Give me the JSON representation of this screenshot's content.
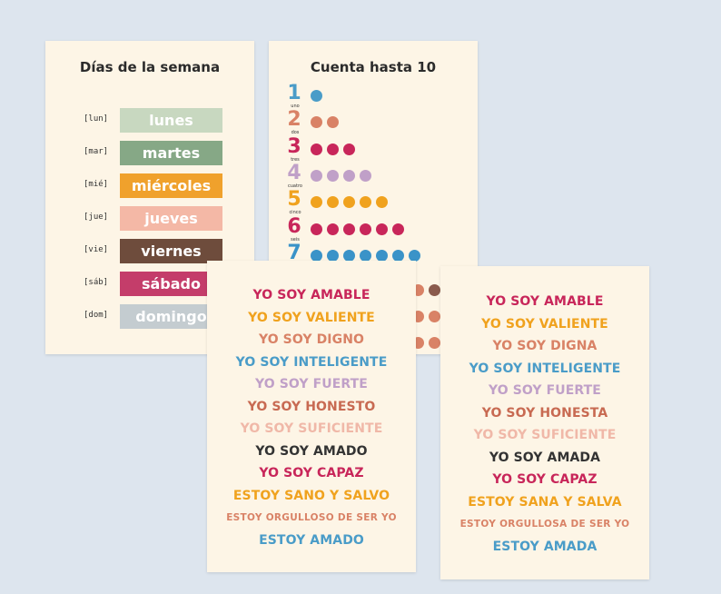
{
  "days_card": {
    "title": "Días de la semana",
    "days": [
      {
        "abbr": "[lun]",
        "name": "lunes",
        "color": "#c8d8c0"
      },
      {
        "abbr": "[mar]",
        "name": "martes",
        "color": "#86a886"
      },
      {
        "abbr": "[mié]",
        "name": "miércoles",
        "color": "#f0a12c"
      },
      {
        "abbr": "[jue]",
        "name": "jueves",
        "color": "#f4b8a6"
      },
      {
        "abbr": "[vie]",
        "name": "viernes",
        "color": "#6e4c3c"
      },
      {
        "abbr": "[sáb]",
        "name": "sábado",
        "color": "#c43d6a"
      },
      {
        "abbr": "[dom]",
        "name": "domingo",
        "color": "#c4ccd0"
      }
    ]
  },
  "count_card": {
    "title": "Cuenta hasta 10",
    "numbers": [
      {
        "digit": "1",
        "word": "uno",
        "count": 1,
        "color": "#4a9cc8"
      },
      {
        "digit": "2",
        "word": "dos",
        "count": 2,
        "color": "#d98266"
      },
      {
        "digit": "3",
        "word": "tres",
        "count": 3,
        "color": "#c8265a"
      },
      {
        "digit": "4",
        "word": "cuatro",
        "count": 4,
        "color": "#c0a0c8"
      },
      {
        "digit": "5",
        "word": "cinco",
        "count": 5,
        "color": "#f0a21e"
      },
      {
        "digit": "6",
        "word": "seis",
        "count": 6,
        "color": "#c8265a"
      },
      {
        "digit": "7",
        "word": "",
        "count": 7,
        "color": "#3a93c8"
      }
    ],
    "hidden_rows_visible_dots": [
      {
        "count": 2,
        "colors": [
          "#d98266",
          "#8a5a4c"
        ]
      },
      {
        "count": 2,
        "colors": [
          "#d98266",
          "#d98266"
        ]
      },
      {
        "count": 2,
        "colors": [
          "#d98266",
          "#d98266"
        ]
      }
    ]
  },
  "affirmations_boy": [
    {
      "text": "YO SOY AMABLE",
      "color": "#c8265a"
    },
    {
      "text": "YO SOY VALIENTE",
      "color": "#f0a21e"
    },
    {
      "text": "YO SOY DIGNO",
      "color": "#d98266"
    },
    {
      "text": "YO SOY INTELIGENTE",
      "color": "#4a9cc8"
    },
    {
      "text": "YO SOY FUERTE",
      "color": "#c0a0c8"
    },
    {
      "text": "YO SOY HONESTO",
      "color": "#c86a52"
    },
    {
      "text": "YO SOY SUFICIENTE",
      "color": "#f0b8a8"
    },
    {
      "text": "YO SOY AMADO",
      "color": "#333333"
    },
    {
      "text": "YO SOY CAPAZ",
      "color": "#c8265a"
    },
    {
      "text": "ESTOY SANO Y SALVO",
      "color": "#f0a21e"
    },
    {
      "text": "ESTOY ORGULLOSO DE SER YO",
      "color": "#d98266",
      "small": true
    },
    {
      "text": "ESTOY AMADO",
      "color": "#4a9cc8"
    }
  ],
  "affirmations_girl": [
    {
      "text": "YO SOY AMABLE",
      "color": "#c8265a"
    },
    {
      "text": "YO SOY VALIENTE",
      "color": "#f0a21e"
    },
    {
      "text": "YO SOY DIGNA",
      "color": "#d98266"
    },
    {
      "text": "YO SOY INTELIGENTE",
      "color": "#4a9cc8"
    },
    {
      "text": "YO SOY FUERTE",
      "color": "#c0a0c8"
    },
    {
      "text": "YO SOY HONESTA",
      "color": "#c86a52"
    },
    {
      "text": "YO SOY SUFICIENTE",
      "color": "#f0b8a8"
    },
    {
      "text": "YO SOY AMADA",
      "color": "#333333"
    },
    {
      "text": "YO SOY CAPAZ",
      "color": "#c8265a"
    },
    {
      "text": "ESTOY SANA Y SALVA",
      "color": "#f0a21e"
    },
    {
      "text": "ESTOY ORGULLOSA DE SER YO",
      "color": "#d98266",
      "small": true
    },
    {
      "text": "ESTOY AMADA",
      "color": "#4a9cc8"
    }
  ]
}
